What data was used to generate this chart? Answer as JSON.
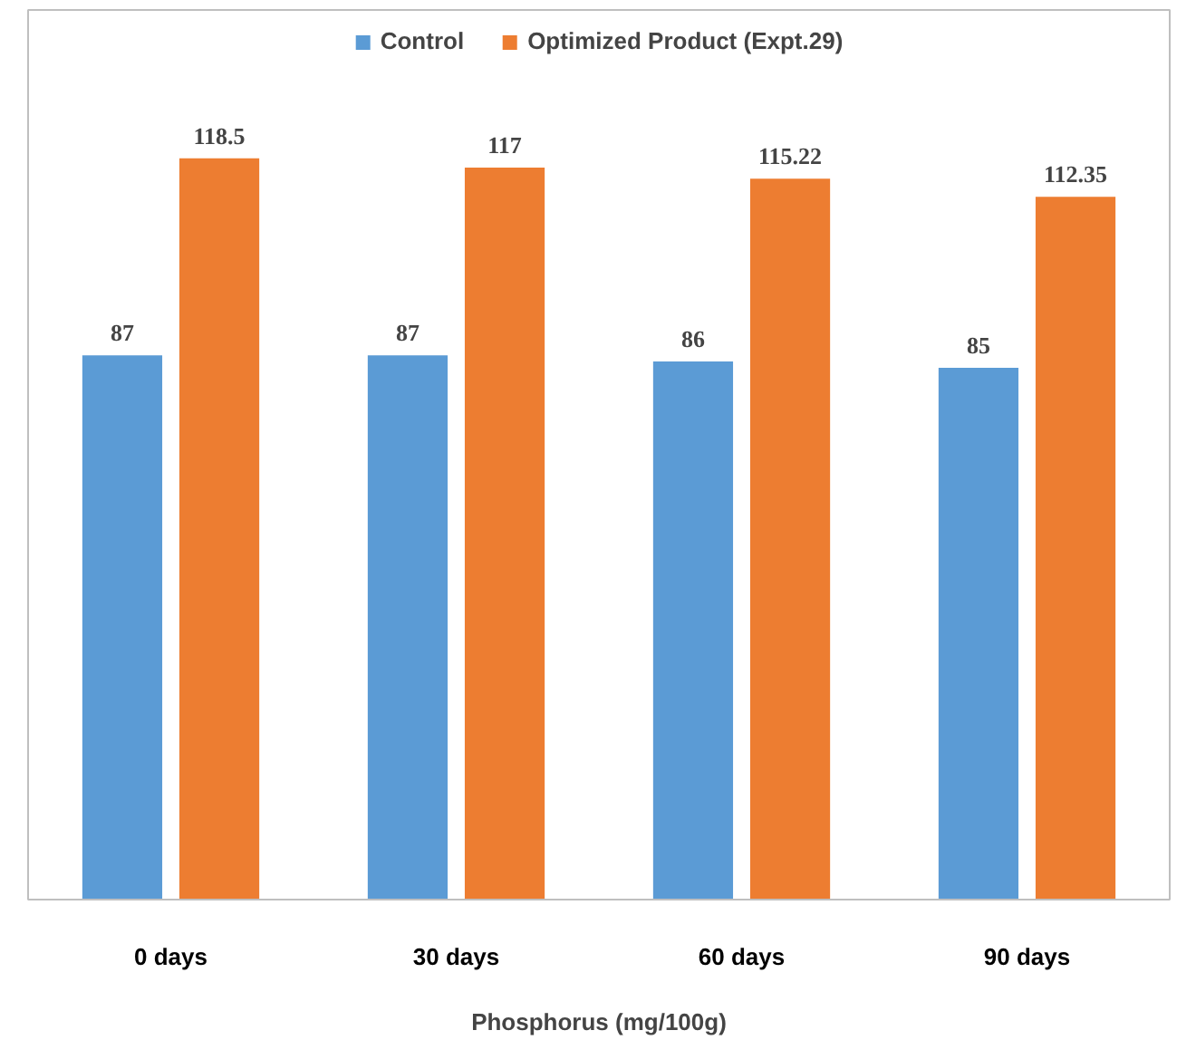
{
  "chart_data": {
    "type": "bar",
    "xlabel": "Phosphorus (mg/100g)",
    "categories": [
      "0 days",
      "30 days",
      "60 days",
      "90 days"
    ],
    "series": [
      {
        "name": "Control",
        "color": "#5b9bd5",
        "values": [
          87,
          87,
          86,
          85
        ]
      },
      {
        "name": "Optimized Product (Expt.29)",
        "color": "#ed7d31",
        "values": [
          118.5,
          117,
          115.22,
          112.35
        ]
      }
    ],
    "data_labels": true,
    "legend": "top",
    "grid": false
  }
}
